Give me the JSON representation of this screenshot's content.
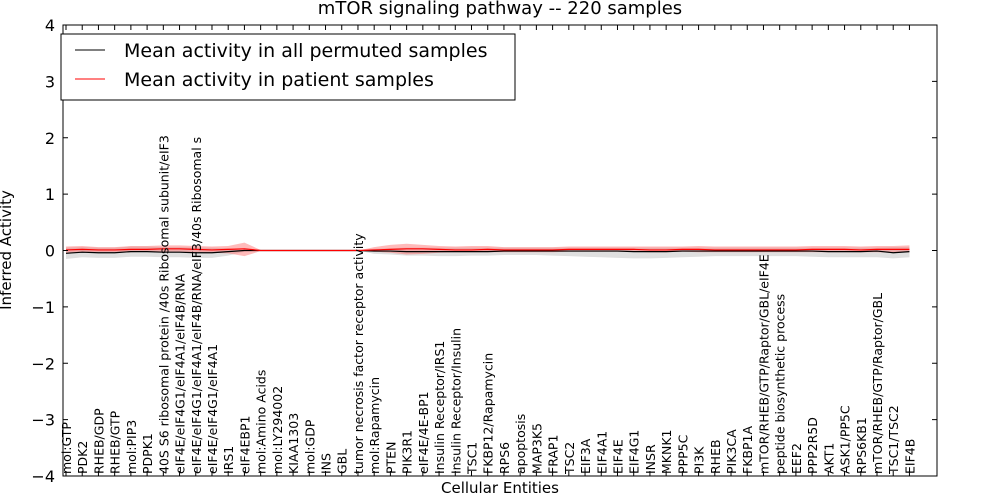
{
  "chart_data": {
    "type": "line",
    "title": "mTOR signaling pathway -- 220 samples",
    "xlabel": "Cellular Entities",
    "ylabel": "Inferred Activity",
    "ylim": [
      -4,
      4
    ],
    "yticks": [
      4,
      3,
      2,
      1,
      0,
      -1,
      -2,
      -3,
      -4
    ],
    "ytick_labels": [
      "4",
      "3",
      "2",
      "1",
      "0",
      "−1",
      "−2",
      "−3",
      "−4"
    ],
    "legend": {
      "placement": "top-left",
      "entries": [
        {
          "label": "Mean activity in all permuted samples",
          "color": "#000000"
        },
        {
          "label": "Mean activity in patient samples",
          "color": "#ff0000"
        }
      ]
    },
    "categories": [
      "mol:GTP",
      "PDK2",
      "RHEB/GDP",
      "RHEB/GTP",
      "mol:PIP3",
      "PDPK1",
      "40S S6 ribosomal protein /40s Ribosomal subunit/eIF3",
      "eIF4E/eIF4G1/eIF4A1/eIF4B/RNA",
      "eIF4E/eIF4G1/eIF4A1/eIF4B/RNA/eIF3/40s Ribosomal s",
      "eIF4E/eIF4G1/eIF4A1",
      "IRS1",
      "eIF4EBP1",
      "mol:Amino Acids",
      "mol:LY294002",
      "KIAA1303",
      "mol:GDP",
      "INS",
      "GBL",
      "tumor necrosis factor receptor activity",
      "mol:Rapamycin",
      "PTEN",
      "PIK3R1",
      "eIF4E/4E-BP1",
      "Insulin Receptor/IRS1",
      "Insulin Receptor/Insulin",
      "TSC1",
      "FKBP12/Rapamycin",
      "RPS6",
      "apoptosis",
      "MAP3K5",
      "FRAP1",
      "TSC2",
      "EIF3A",
      "EIF4A1",
      "EIF4E",
      "EIF4G1",
      "INSR",
      "MKNK1",
      "PPP5C",
      "PI3K",
      "RHEB",
      "PIK3CA",
      "FKBP1A",
      "mTOR/RHEB/GTP/Raptor/GBL/eIF4E",
      "peptide biosynthetic process",
      "EEF2",
      "PPP2R5D",
      "AKT1",
      "ASK1/PP5C",
      "RPS6KB1",
      "mTOR/RHEB/GTP/Raptor/GBL",
      "TSC1/TSC2",
      "EIF4B"
    ],
    "series": [
      {
        "name": "Mean activity in all permuted samples",
        "color": "#000000",
        "values": [
          -0.05,
          -0.03,
          -0.04,
          -0.04,
          -0.02,
          -0.02,
          -0.03,
          -0.03,
          -0.04,
          -0.04,
          -0.02,
          0,
          0,
          0,
          0,
          0,
          0,
          0,
          0,
          -0.01,
          -0.01,
          -0.02,
          -0.02,
          -0.02,
          -0.02,
          -0.02,
          -0.02,
          -0.01,
          -0.01,
          -0.01,
          -0.01,
          -0.01,
          -0.01,
          -0.01,
          -0.01,
          -0.02,
          -0.02,
          -0.02,
          -0.01,
          -0.01,
          -0.01,
          -0.01,
          -0.01,
          -0.01,
          -0.01,
          -0.01,
          -0.01,
          -0.02,
          -0.02,
          -0.02,
          -0.01,
          -0.04,
          -0.02
        ],
        "band_upper": [
          0.05,
          0.06,
          0.05,
          0.05,
          0.07,
          0.07,
          0.06,
          0.06,
          0.05,
          0.05,
          0.04,
          0.01,
          0,
          0,
          0,
          0,
          0,
          0,
          0,
          0.03,
          0.04,
          0.05,
          0.05,
          0.05,
          0.05,
          0.05,
          0.05,
          0.05,
          0.05,
          0.05,
          0.05,
          0.05,
          0.05,
          0.05,
          0.05,
          0.05,
          0.05,
          0.05,
          0.05,
          0.05,
          0.05,
          0.05,
          0.05,
          0.05,
          0.05,
          0.05,
          0.05,
          0.05,
          0.05,
          0.05,
          0.05,
          0.06,
          0.06
        ],
        "band_lower": [
          -0.15,
          -0.12,
          -0.13,
          -0.13,
          -0.11,
          -0.11,
          -0.12,
          -0.12,
          -0.13,
          -0.13,
          -0.09,
          -0.02,
          0,
          0,
          0,
          0,
          0,
          0,
          0,
          -0.06,
          -0.07,
          -0.09,
          -0.09,
          -0.1,
          -0.1,
          -0.09,
          -0.09,
          -0.08,
          -0.08,
          -0.08,
          -0.09,
          -0.1,
          -0.11,
          -0.12,
          -0.13,
          -0.14,
          -0.14,
          -0.13,
          -0.12,
          -0.11,
          -0.1,
          -0.1,
          -0.1,
          -0.1,
          -0.1,
          -0.1,
          -0.11,
          -0.12,
          -0.12,
          -0.12,
          -0.12,
          -0.14,
          -0.12
        ]
      },
      {
        "name": "Mean activity in patient samples",
        "color": "#ff0000",
        "values": [
          0.01,
          0.02,
          0.01,
          0.01,
          0.02,
          0.02,
          0.03,
          0.03,
          0.02,
          0.01,
          0.02,
          0.03,
          0,
          0,
          0,
          0,
          0,
          0,
          0,
          0.01,
          0.02,
          0.03,
          0.03,
          0.02,
          0.01,
          0.01,
          0.02,
          0.01,
          0.01,
          0.01,
          0.01,
          0.02,
          0.02,
          0.02,
          0.02,
          0.02,
          0.01,
          0.01,
          0.02,
          0.02,
          0.01,
          0.01,
          0.01,
          0.01,
          0.01,
          0.01,
          0.02,
          0.02,
          0.02,
          0.01,
          0.02,
          0.02,
          0.02
        ],
        "band_upper": [
          0.07,
          0.08,
          0.06,
          0.06,
          0.08,
          0.08,
          0.09,
          0.09,
          0.08,
          0.07,
          0.08,
          0.14,
          0.01,
          0,
          0,
          0,
          0,
          0,
          0,
          0.06,
          0.1,
          0.12,
          0.1,
          0.08,
          0.07,
          0.08,
          0.08,
          0.06,
          0.06,
          0.06,
          0.06,
          0.07,
          0.07,
          0.07,
          0.07,
          0.07,
          0.07,
          0.07,
          0.07,
          0.08,
          0.07,
          0.07,
          0.07,
          0.07,
          0.07,
          0.07,
          0.08,
          0.08,
          0.08,
          0.07,
          0.08,
          0.08,
          0.09
        ],
        "band_lower": [
          -0.04,
          -0.03,
          -0.03,
          -0.03,
          -0.03,
          -0.02,
          -0.02,
          -0.02,
          -0.03,
          -0.04,
          -0.05,
          -0.1,
          -0.01,
          0,
          0,
          0,
          0,
          0,
          0,
          -0.02,
          -0.04,
          -0.07,
          -0.06,
          -0.04,
          -0.03,
          -0.03,
          -0.03,
          -0.03,
          -0.03,
          -0.03,
          -0.03,
          -0.02,
          -0.02,
          -0.02,
          -0.02,
          -0.02,
          -0.03,
          -0.03,
          -0.02,
          -0.03,
          -0.03,
          -0.03,
          -0.03,
          -0.03,
          -0.03,
          -0.03,
          -0.03,
          -0.03,
          -0.03,
          -0.03,
          -0.03,
          -0.04,
          -0.03
        ]
      }
    ]
  }
}
